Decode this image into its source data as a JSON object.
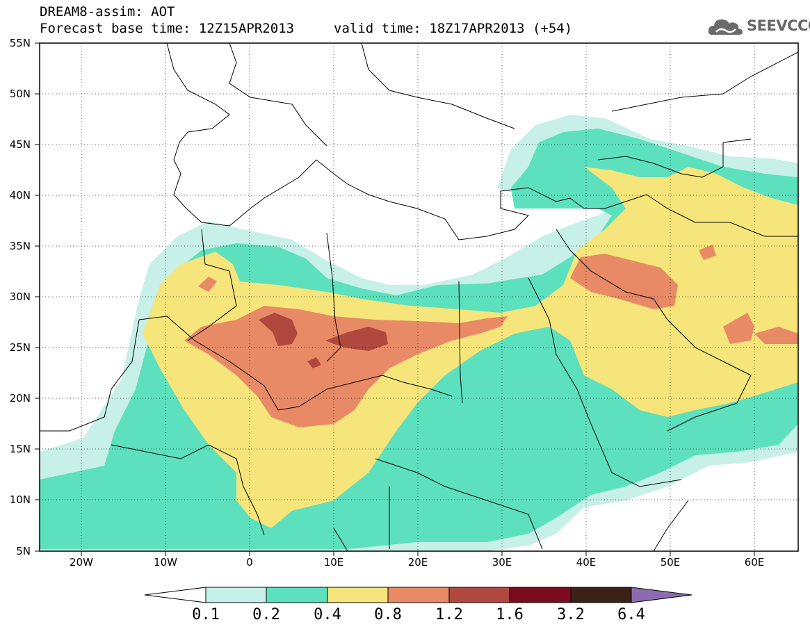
{
  "header": {
    "title": "DREAM8-assim: AOT",
    "forecast": "Forecast base time: 12Z15APR2013",
    "valid": "valid time: 18Z17APR2013 (+54)",
    "logo_text": "SEEVCCC"
  },
  "map": {
    "projection": "lat-lon",
    "lon_range": [
      -25,
      65
    ],
    "lat_range": [
      5,
      55
    ],
    "latitude_labels": [
      "55N",
      "50N",
      "45N",
      "40N",
      "35N",
      "30N",
      "25N",
      "20N",
      "15N",
      "10N",
      "5N"
    ],
    "longitude_labels": [
      "20W",
      "10W",
      "0",
      "10E",
      "20E",
      "30E",
      "40E",
      "50E",
      "60E"
    ]
  },
  "colorbar": {
    "labels": [
      "0.1",
      "0.2",
      "0.4",
      "0.8",
      "1.2",
      "1.6",
      "3.2",
      "6.4"
    ],
    "colors": [
      "#ffffff",
      "#c7f0e8",
      "#5de0bd",
      "#f5e57a",
      "#e88a65",
      "#b1483f",
      "#7b0c1f",
      "#3b2216",
      "#8c6bb1"
    ]
  }
}
